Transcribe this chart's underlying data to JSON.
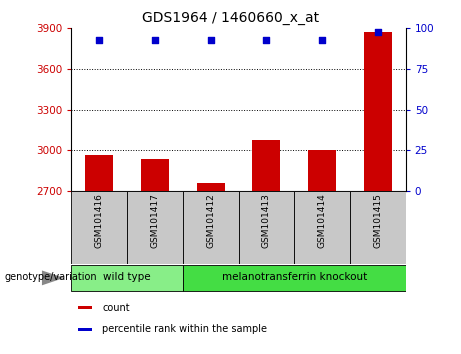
{
  "title": "GDS1964 / 1460660_x_at",
  "categories": [
    "GSM101416",
    "GSM101417",
    "GSM101412",
    "GSM101413",
    "GSM101414",
    "GSM101415"
  ],
  "counts": [
    2970,
    2940,
    2760,
    3080,
    3000,
    3870
  ],
  "percentile_ranks": [
    93,
    93,
    93,
    93,
    93,
    98
  ],
  "ylim_left": [
    2700,
    3900
  ],
  "ylim_right": [
    0,
    100
  ],
  "yticks_left": [
    2700,
    3000,
    3300,
    3600,
    3900
  ],
  "yticks_right": [
    0,
    25,
    50,
    75,
    100
  ],
  "bar_color": "#cc0000",
  "dot_color": "#0000cc",
  "left_tick_color": "#cc0000",
  "right_tick_color": "#0000cc",
  "group_labels": [
    "wild type",
    "melanotransferrin knockout"
  ],
  "group_colors": [
    "#88ee88",
    "#44dd44"
  ],
  "group_col_spans": [
    2,
    4
  ],
  "legend_items": [
    {
      "label": "count",
      "color": "#cc0000"
    },
    {
      "label": "percentile rank within the sample",
      "color": "#0000cc"
    }
  ],
  "xlabel": "genotype/variation",
  "bar_width": 0.5,
  "label_area_bg": "#c8c8c8"
}
